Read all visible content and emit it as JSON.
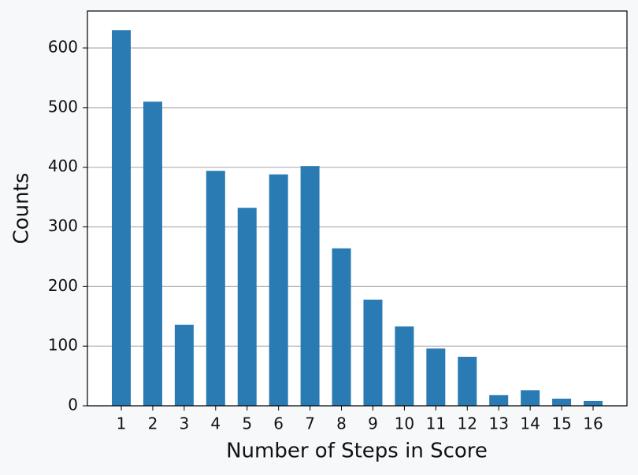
{
  "chart_data": {
    "type": "bar",
    "x_label": "Number of Steps in Score",
    "y_label": "Counts",
    "categories": [
      "1",
      "2",
      "3",
      "4",
      "5",
      "6",
      "7",
      "8",
      "9",
      "10",
      "11",
      "12",
      "13",
      "14",
      "15",
      "16"
    ],
    "values": [
      630,
      510,
      136,
      394,
      332,
      388,
      402,
      264,
      178,
      133,
      96,
      82,
      18,
      26,
      12,
      8
    ],
    "color": "#2a7ab4",
    "ylim": [
      0,
      662
    ],
    "yticks": [
      0,
      100,
      200,
      300,
      400,
      500,
      600
    ],
    "grid": true
  }
}
